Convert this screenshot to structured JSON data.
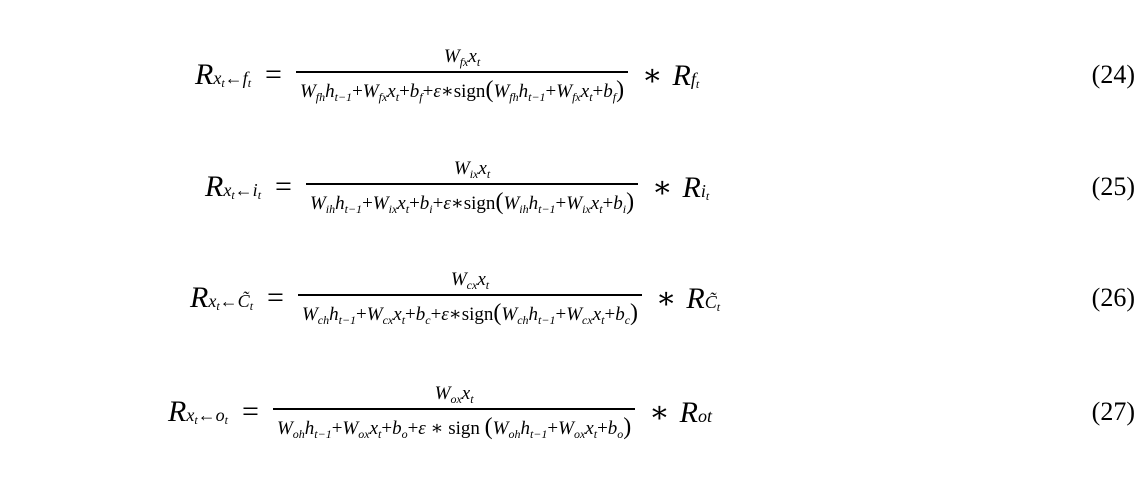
{
  "equations": [
    {
      "lhs_sub": "x_t ← f_t",
      "lhs_sub_a": "x",
      "lhs_sub_a_sub": "t",
      "lhs_sub_b": "f",
      "lhs_sub_b_sub": "t",
      "numerator": "W_{fx} x_t",
      "denominator": "W_{fh} h_{t-1} + W_{fx} x_t + b_f + ε∗sign(W_{fh} h_{t-1} + W_{fx} x_t + b_f)",
      "rhs_sub": "f_t",
      "number": "(24)"
    },
    {
      "lhs_sub": "x_t ← i_t",
      "numerator": "W_{ix} x_t",
      "denominator": "W_{ih} h_{t-1} + W_{ix} x_t + b_i + ε∗sign(W_{ih} h_{t-1} + W_{ix} x_t + b_i)",
      "rhs_sub": "i_t",
      "number": "(25)"
    },
    {
      "lhs_sub": "x_t ← C̃_t",
      "numerator": "W_{cx} x_t",
      "denominator": "W_{ch} h_{t-1} + W_{cx} x_t + b_c + ε∗sign(W_{ch} h_{t-1} + W_{cx} x_t + b_c)",
      "rhs_sub": "C̃_t",
      "number": "(26)"
    },
    {
      "lhs_sub": "x_t ← o_t",
      "numerator": "W_{ox} x_t",
      "denominator": "W_{oh} h_{t-1} + W_{ox} x_t + b_o + ε ∗ sign (W_{oh} h_{t-1} + W_{ox} x_t + b_o)",
      "rhs_sub": "ot",
      "number": "(27)"
    }
  ]
}
